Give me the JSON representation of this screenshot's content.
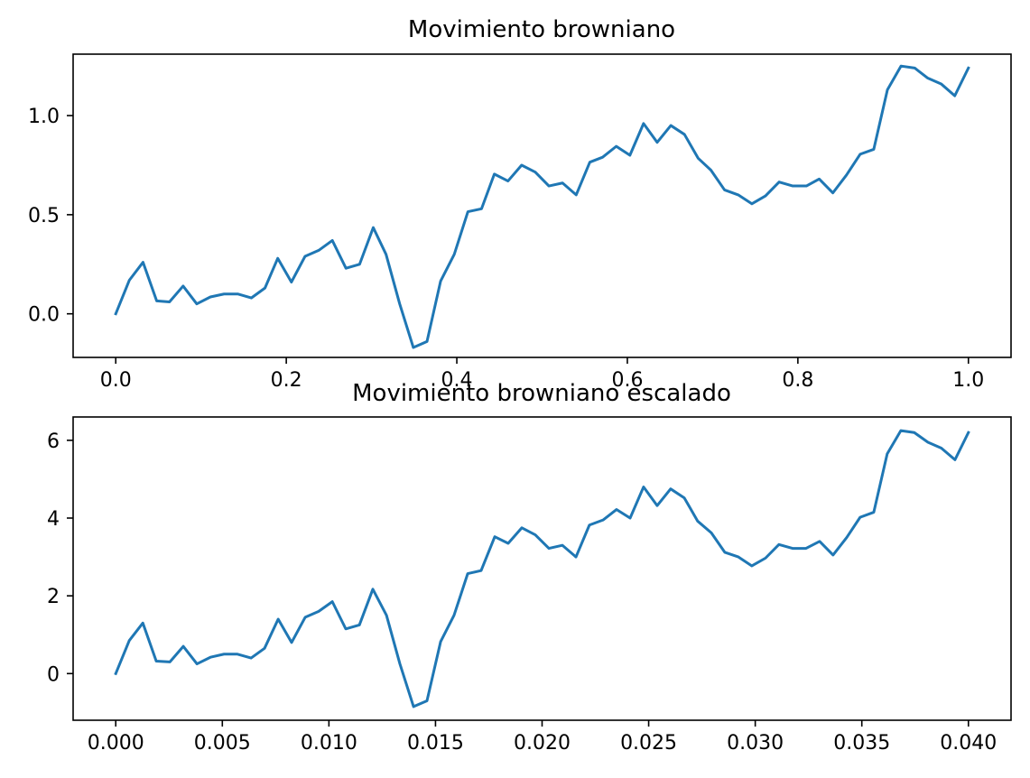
{
  "chart_data": [
    {
      "type": "line",
      "title": "Movimiento browniano",
      "xlabel": "",
      "ylabel": "",
      "xlim": [
        -0.05,
        1.05
      ],
      "ylim": [
        -0.22,
        1.31
      ],
      "xticks": [
        0.0,
        0.2,
        0.4,
        0.6,
        0.8,
        1.0
      ],
      "xtick_labels": [
        "0.0",
        "0.2",
        "0.4",
        "0.6",
        "0.8",
        "1.0"
      ],
      "yticks": [
        0.0,
        0.5,
        1.0
      ],
      "ytick_labels": [
        "0.0",
        "0.5",
        "1.0"
      ],
      "grid": false,
      "line_color": "#1f77b4",
      "series": [
        {
          "x": [
            0.0,
            0.016,
            0.032,
            0.048,
            0.063,
            0.079,
            0.095,
            0.111,
            0.127,
            0.143,
            0.159,
            0.175,
            0.19,
            0.206,
            0.222,
            0.238,
            0.254,
            0.27,
            0.286,
            0.302,
            0.317,
            0.333,
            0.349,
            0.365,
            0.381,
            0.397,
            0.413,
            0.429,
            0.444,
            0.46,
            0.476,
            0.492,
            0.508,
            0.524,
            0.54,
            0.556,
            0.571,
            0.587,
            0.603,
            0.619,
            0.635,
            0.651,
            0.667,
            0.683,
            0.698,
            0.714,
            0.73,
            0.746,
            0.762,
            0.778,
            0.794,
            0.81,
            0.825,
            0.841,
            0.857,
            0.873,
            0.889,
            0.905,
            0.921,
            0.937,
            0.952,
            0.968,
            0.984,
            1.0
          ],
          "y": [
            0.0,
            0.17,
            0.26,
            0.065,
            0.06,
            0.14,
            0.05,
            0.085,
            0.1,
            0.1,
            0.08,
            0.13,
            0.28,
            0.16,
            0.29,
            0.32,
            0.37,
            0.23,
            0.25,
            0.435,
            0.3,
            0.05,
            -0.17,
            -0.14,
            0.165,
            0.3,
            0.515,
            0.53,
            0.705,
            0.67,
            0.75,
            0.715,
            0.645,
            0.66,
            0.6,
            0.765,
            0.79,
            0.845,
            0.8,
            0.96,
            0.865,
            0.95,
            0.905,
            0.785,
            0.725,
            0.625,
            0.6,
            0.555,
            0.595,
            0.665,
            0.645,
            0.645,
            0.68,
            0.61,
            0.7,
            0.805,
            0.83,
            1.13,
            1.25,
            1.24,
            1.19,
            1.16,
            1.1,
            1.24
          ]
        }
      ]
    },
    {
      "type": "line",
      "title": "Movimiento browniano escalado",
      "xlabel": "",
      "ylabel": "",
      "xlim": [
        -0.002,
        0.042
      ],
      "ylim": [
        -1.2,
        6.6
      ],
      "xticks": [
        0.0,
        0.005,
        0.01,
        0.015,
        0.02,
        0.025,
        0.03,
        0.035,
        0.04
      ],
      "xtick_labels": [
        "0.000",
        "0.005",
        "0.010",
        "0.015",
        "0.020",
        "0.025",
        "0.030",
        "0.035",
        "0.040"
      ],
      "yticks": [
        0,
        2,
        4,
        6
      ],
      "ytick_labels": [
        "0",
        "2",
        "4",
        "6"
      ],
      "grid": false,
      "line_color": "#1f77b4",
      "series": [
        {
          "x": [
            0.0,
            0.000635,
            0.00127,
            0.0019,
            0.00254,
            0.00317,
            0.00381,
            0.00444,
            0.00508,
            0.00571,
            0.00635,
            0.00698,
            0.00762,
            0.00825,
            0.00889,
            0.00952,
            0.01016,
            0.01079,
            0.01143,
            0.01206,
            0.0127,
            0.01333,
            0.01397,
            0.0146,
            0.01524,
            0.01587,
            0.01651,
            0.01714,
            0.01778,
            0.01841,
            0.01905,
            0.01968,
            0.02032,
            0.02095,
            0.02159,
            0.02222,
            0.02286,
            0.02349,
            0.02413,
            0.02476,
            0.0254,
            0.02603,
            0.02667,
            0.0273,
            0.02794,
            0.02857,
            0.02921,
            0.02984,
            0.03048,
            0.03111,
            0.03175,
            0.03238,
            0.03302,
            0.03365,
            0.03429,
            0.03492,
            0.03556,
            0.03619,
            0.03683,
            0.03746,
            0.0381,
            0.03873,
            0.03937,
            0.04
          ],
          "y": [
            0.0,
            0.85,
            1.3,
            0.32,
            0.3,
            0.7,
            0.25,
            0.42,
            0.5,
            0.5,
            0.4,
            0.65,
            1.4,
            0.8,
            1.45,
            1.6,
            1.85,
            1.15,
            1.25,
            2.17,
            1.5,
            0.25,
            -0.85,
            -0.7,
            0.82,
            1.5,
            2.57,
            2.65,
            3.52,
            3.35,
            3.75,
            3.57,
            3.22,
            3.3,
            3.0,
            3.82,
            3.95,
            4.22,
            4.0,
            4.8,
            4.32,
            4.75,
            4.52,
            3.92,
            3.62,
            3.12,
            3.0,
            2.77,
            2.97,
            3.32,
            3.22,
            3.22,
            3.4,
            3.05,
            3.5,
            4.02,
            4.15,
            5.65,
            6.25,
            6.2,
            5.95,
            5.8,
            5.5,
            6.2
          ]
        }
      ]
    }
  ]
}
